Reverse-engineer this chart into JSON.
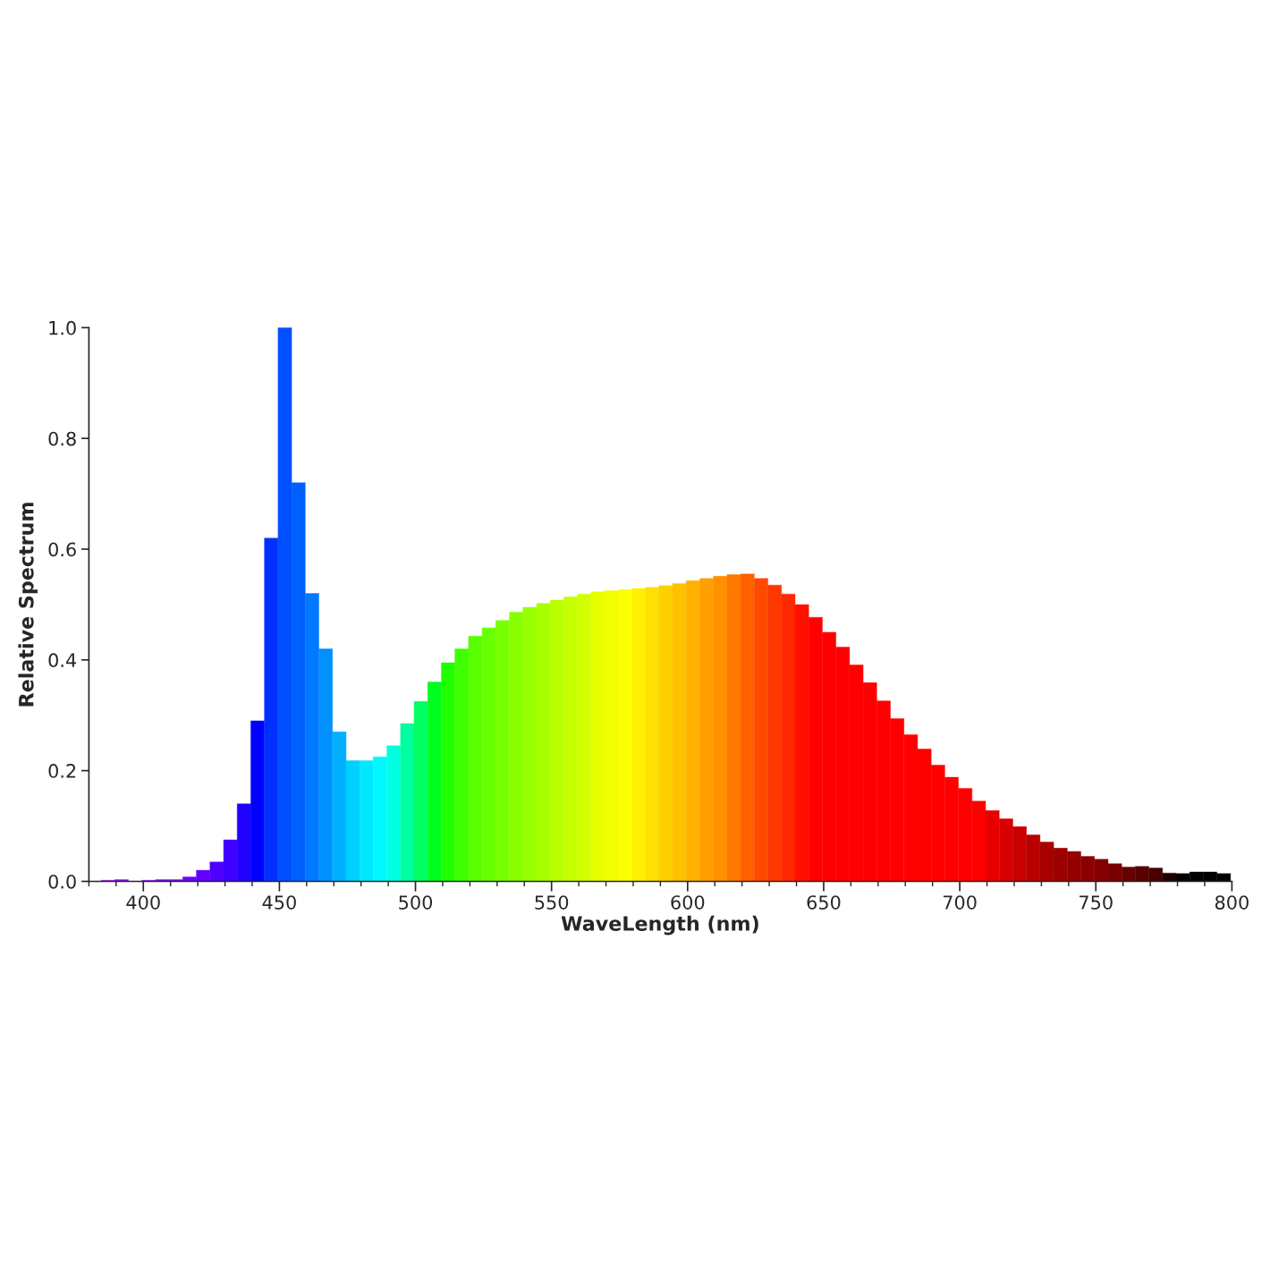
{
  "chart_data": {
    "type": "bar",
    "xlabel": "WaveLength (nm)",
    "ylabel": "Relative Spectrum",
    "x": [
      382,
      387,
      392,
      397,
      402,
      407,
      412,
      417,
      422,
      427,
      432,
      437,
      442,
      447,
      452,
      457,
      462,
      467,
      472,
      477,
      482,
      487,
      492,
      497,
      502,
      507,
      512,
      517,
      522,
      527,
      532,
      537,
      542,
      547,
      552,
      557,
      562,
      567,
      572,
      577,
      582,
      587,
      592,
      597,
      602,
      607,
      612,
      617,
      622,
      627,
      632,
      637,
      642,
      647,
      652,
      657,
      662,
      667,
      672,
      677,
      682,
      687,
      692,
      697,
      702,
      707,
      712,
      717,
      722,
      727,
      732,
      737,
      742,
      747,
      752,
      757,
      762,
      767,
      772,
      777,
      782,
      787,
      792,
      797
    ],
    "values": [
      0,
      0.002,
      0.003,
      0,
      0.002,
      0.003,
      0.003,
      0.008,
      0.02,
      0.035,
      0.075,
      0.14,
      0.29,
      0.62,
      1.0,
      0.72,
      0.52,
      0.42,
      0.27,
      0.218,
      0.218,
      0.225,
      0.245,
      0.285,
      0.325,
      0.36,
      0.395,
      0.42,
      0.443,
      0.458,
      0.471,
      0.486,
      0.495,
      0.502,
      0.508,
      0.514,
      0.519,
      0.523,
      0.525,
      0.527,
      0.529,
      0.531,
      0.534,
      0.538,
      0.543,
      0.547,
      0.551,
      0.554,
      0.555,
      0.547,
      0.535,
      0.519,
      0.5,
      0.477,
      0.45,
      0.423,
      0.391,
      0.359,
      0.326,
      0.294,
      0.265,
      0.239,
      0.21,
      0.188,
      0.168,
      0.145,
      0.128,
      0.113,
      0.099,
      0.084,
      0.071,
      0.06,
      0.054,
      0.045,
      0.04,
      0.032,
      0.026,
      0.027,
      0.024,
      0.015,
      0.014,
      0.017,
      0.017,
      0.014
    ],
    "colors": [
      "#a000ff",
      "#a000ff",
      "#9800ff",
      "#9000ff",
      "#8800ff",
      "#8000ff",
      "#7800ff",
      "#7000ff",
      "#6000ff",
      "#5000ff",
      "#4000ff",
      "#2000ff",
      "#0000ff",
      "#0030ff",
      "#0050ff",
      "#0060ff",
      "#0078ff",
      "#0090ff",
      "#00b0ff",
      "#00d0ff",
      "#00e8ff",
      "#00f8ff",
      "#00ffe0",
      "#00ffa0",
      "#00ff60",
      "#00ff20",
      "#20ff00",
      "#40ff00",
      "#58ff00",
      "#68ff00",
      "#78ff00",
      "#88ff00",
      "#98ff00",
      "#a8ff00",
      "#b8ff00",
      "#c6ff00",
      "#d4ff00",
      "#e6ff00",
      "#f2ff00",
      "#fcff00",
      "#fff000",
      "#ffe000",
      "#ffd000",
      "#ffc000",
      "#ffb000",
      "#ffa000",
      "#ff9000",
      "#ff7800",
      "#ff6000",
      "#ff4800",
      "#ff3800",
      "#ff2800",
      "#ff1000",
      "#ff0000",
      "#ff0000",
      "#ff0000",
      "#ff0000",
      "#ff0000",
      "#ff0000",
      "#ff0000",
      "#ff0000",
      "#ff0000",
      "#ff0000",
      "#ff0000",
      "#ff0000",
      "#ff0000",
      "#e80000",
      "#d80000",
      "#c80000",
      "#b80000",
      "#a80000",
      "#9c0000",
      "#940000",
      "#8c0000",
      "#840000",
      "#780000",
      "#680000",
      "#580000",
      "#480000",
      "#200000",
      "#000000",
      "#000000",
      "#000000",
      "#000000"
    ],
    "xlim": [
      380,
      800
    ],
    "ylim": [
      0,
      1.0
    ],
    "xticks": [
      400,
      450,
      500,
      550,
      600,
      650,
      700,
      750,
      800
    ],
    "yticks": [
      {
        "value": 0,
        "label": "0.0"
      },
      {
        "value": 0.2,
        "label": "0.2"
      },
      {
        "value": 0.4,
        "label": "0.4"
      },
      {
        "value": 0.6,
        "label": "0.6"
      },
      {
        "value": 0.8,
        "label": "0.8"
      },
      {
        "value": 1.0,
        "label": "1.0"
      }
    ]
  }
}
